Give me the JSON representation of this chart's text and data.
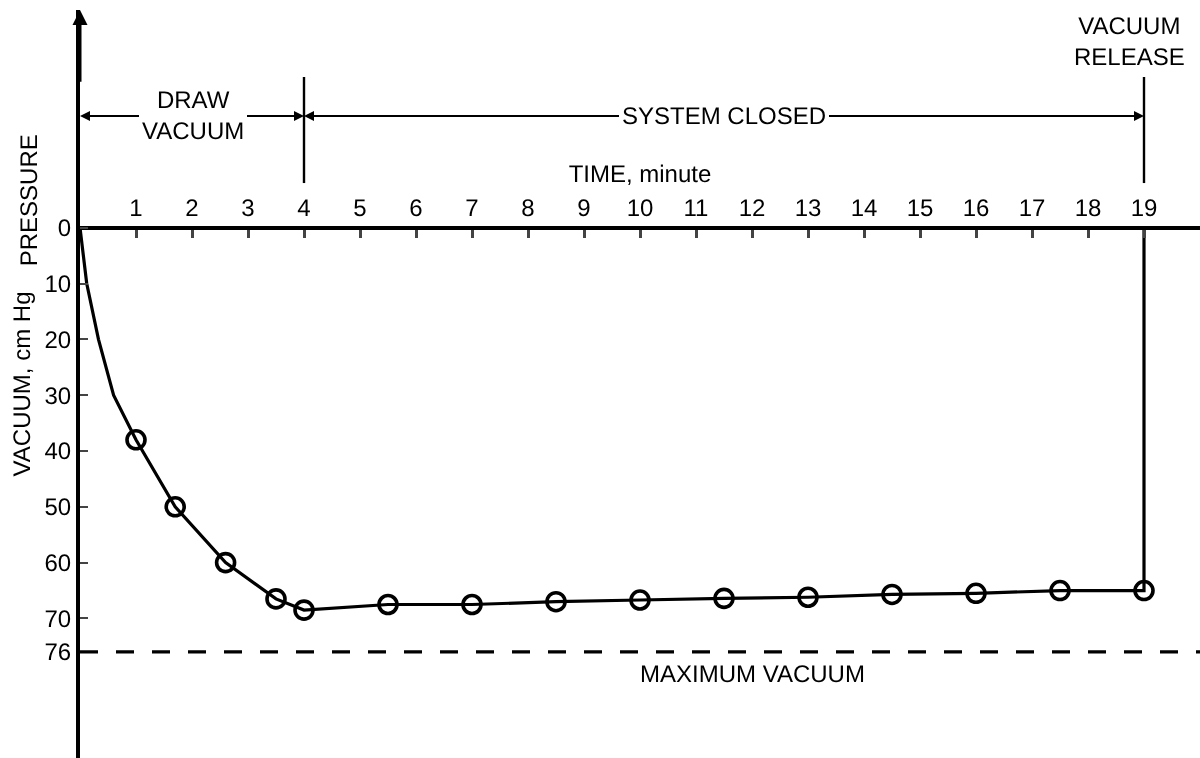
{
  "chart_data": {
    "type": "line",
    "xlabel": "TIME, minute",
    "ylabel": "VACUUM, cm Hg",
    "annotations": [
      "PRESSURE",
      "DRAW VACUUM",
      {
        "text": "SYSTEM CLOSED",
        "x": 19,
        "y": -20
      }
    ],
    "xlim": [
      0,
      20
    ],
    "xticks": [
      1,
      2,
      3,
      4,
      5,
      6,
      7,
      8,
      9,
      10,
      11,
      12,
      13,
      14,
      15,
      16,
      17,
      18,
      19
    ],
    "ylim": [
      95,
      -39
    ],
    "yticks": [
      0,
      10,
      20,
      30,
      40,
      50,
      60,
      70,
      76
    ],
    "series": [
      {
        "color": "#000000",
        "marker": "none",
        "line_style": "solid",
        "x": [
          0,
          0.12,
          0.33,
          0.6,
          1,
          1.7,
          2.6,
          3.5,
          4,
          5.5,
          7,
          8.5,
          10,
          11.5,
          13,
          14.5,
          16,
          17.5,
          19,
          19
        ],
        "values": [
          0,
          10,
          20,
          30,
          38,
          50,
          60,
          66.5,
          68.5,
          67.5,
          67.5,
          67,
          66.7,
          66.4,
          66.2,
          65.7,
          65.5,
          65,
          65,
          0
        ]
      },
      {
        "type": "scatter",
        "color": "#000000",
        "marker": "circle",
        "x": [
          1,
          1.7,
          2.6,
          3.5,
          4,
          5.5,
          7,
          8.5,
          10,
          11.5,
          13,
          14.5,
          16,
          17.5,
          19
        ],
        "values": [
          38,
          50,
          60,
          66.5,
          68.5,
          67.5,
          67.5,
          67,
          66.7,
          66.4,
          66.2,
          65.7,
          65.5,
          65,
          65
        ]
      }
    ],
    "ref_lines": [
      {
        "axis": "y",
        "value": 76,
        "label": "MAXIMUM VACUUM",
        "line_style": "dashed"
      },
      {
        "axis": "x",
        "value": 4
      },
      {
        "axis": "x",
        "value": 19,
        "label": "VACUUM RELEASE"
      }
    ]
  }
}
